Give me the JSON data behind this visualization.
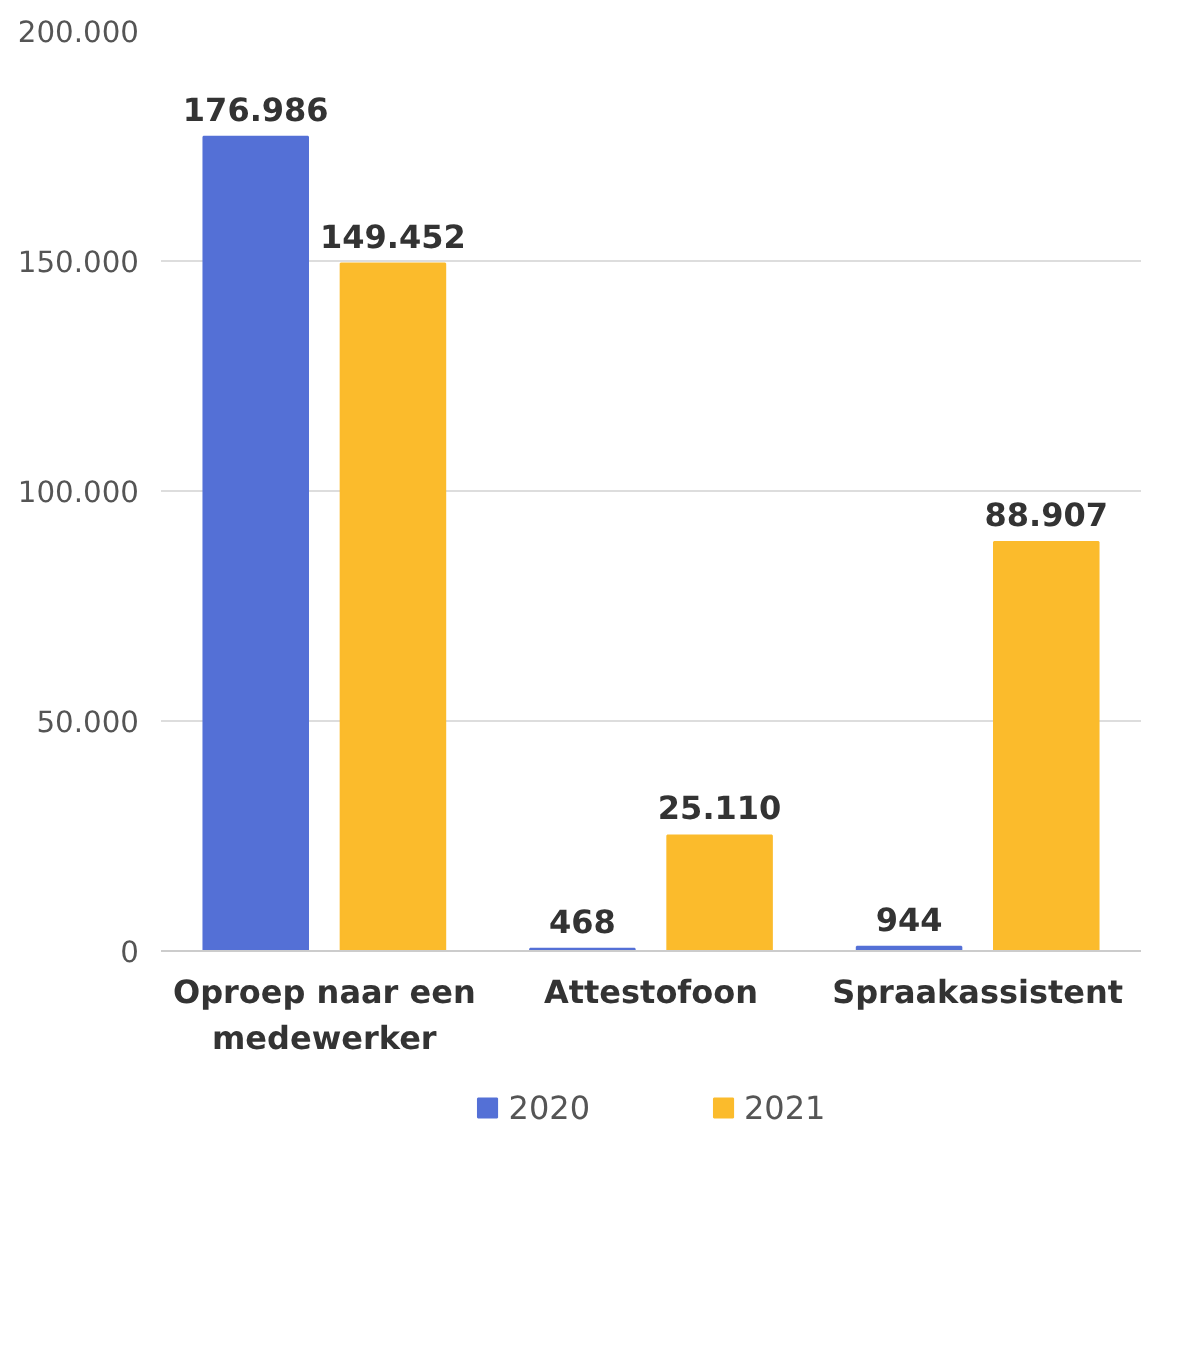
{
  "chart_data": {
    "type": "bar",
    "categories": [
      "Oproep naar een medewerker",
      "Attestofoon",
      "Spraakassistent"
    ],
    "series": [
      {
        "name": "2020",
        "color": "#5470d6",
        "values": [
          176986,
          468,
          944
        ],
        "value_labels": [
          "176.986",
          "468",
          "944"
        ]
      },
      {
        "name": "2021",
        "color": "#fbbb2c",
        "values": [
          149452,
          25110,
          88907
        ],
        "value_labels": [
          "149.452",
          "25.110",
          "88.907"
        ]
      }
    ],
    "ylim": [
      0,
      200000
    ],
    "yticks": [
      0,
      {
        "value": 50000,
        "label": "50.000"
      },
      {
        "value": 100000,
        "label": "100.000"
      },
      {
        "value": 150000,
        "label": "150.000"
      },
      {
        "value": 200000,
        "label": "200.000"
      }
    ],
    "grid": "y",
    "legend": "bottom"
  }
}
